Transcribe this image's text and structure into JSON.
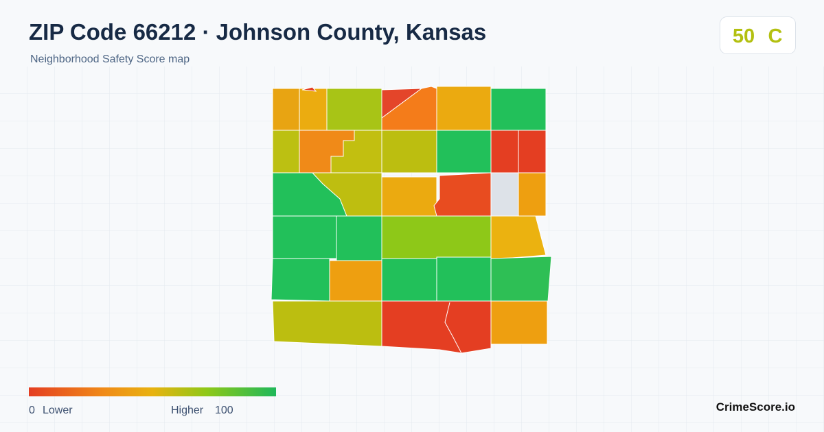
{
  "header": {
    "title": "ZIP Code 66212 · Johnson County, Kansas",
    "subtitle": "Neighborhood Safety Score map"
  },
  "score": {
    "value": 50,
    "grade": "C"
  },
  "legend": {
    "min": 0,
    "min_label": "Lower",
    "max_label": "Higher",
    "max": 100
  },
  "brand": "CrimeScore.io"
}
